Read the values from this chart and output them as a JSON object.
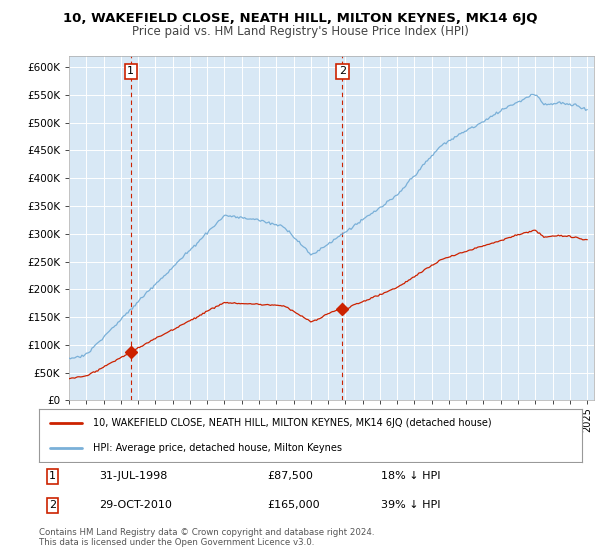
{
  "title": "10, WAKEFIELD CLOSE, NEATH HILL, MILTON KEYNES, MK14 6JQ",
  "subtitle": "Price paid vs. HM Land Registry's House Price Index (HPI)",
  "xlim_start": 1995.0,
  "xlim_end": 2025.4,
  "ylim_min": 0,
  "ylim_max": 620000,
  "yticks": [
    0,
    50000,
    100000,
    150000,
    200000,
    250000,
    300000,
    350000,
    400000,
    450000,
    500000,
    550000,
    600000
  ],
  "ytick_labels": [
    "£0",
    "£50K",
    "£100K",
    "£150K",
    "£200K",
    "£250K",
    "£300K",
    "£350K",
    "£400K",
    "£450K",
    "£500K",
    "£550K",
    "£600K"
  ],
  "plot_bg_color": "#d8e8f5",
  "hpi_color": "#7ab0d8",
  "price_color": "#cc2200",
  "sale1_x": 1998.58,
  "sale1_y": 87500,
  "sale2_x": 2010.83,
  "sale2_y": 165000,
  "sale1_date": "31-JUL-1998",
  "sale1_price": "£87,500",
  "sale1_hpi": "18% ↓ HPI",
  "sale2_date": "29-OCT-2010",
  "sale2_price": "£165,000",
  "sale2_hpi": "39% ↓ HPI",
  "legend_line1": "10, WAKEFIELD CLOSE, NEATH HILL, MILTON KEYNES, MK14 6JQ (detached house)",
  "legend_line2": "HPI: Average price, detached house, Milton Keynes",
  "footer": "Contains HM Land Registry data © Crown copyright and database right 2024.\nThis data is licensed under the Open Government Licence v3.0.",
  "xtick_years": [
    1995,
    1996,
    1997,
    1998,
    1999,
    2000,
    2001,
    2002,
    2003,
    2004,
    2005,
    2006,
    2007,
    2008,
    2009,
    2010,
    2011,
    2012,
    2013,
    2014,
    2015,
    2016,
    2017,
    2018,
    2019,
    2020,
    2021,
    2022,
    2023,
    2024,
    2025
  ]
}
